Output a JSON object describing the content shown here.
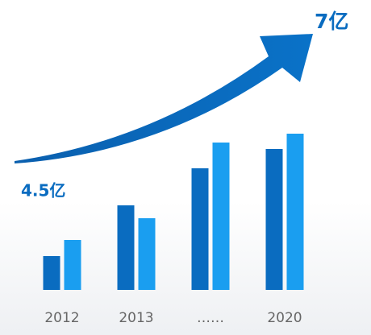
{
  "chart_data": {
    "type": "bar",
    "categories": [
      "2012",
      "2013",
      "……",
      "2020"
    ],
    "series": [
      {
        "color": "#0a6cc0",
        "values": [
          42,
          105,
          151,
          175
        ]
      },
      {
        "color": "#1a9ef0",
        "values": [
          62,
          89,
          183,
          194
        ]
      }
    ],
    "annotations": [
      "4.5亿",
      "7亿"
    ]
  }
}
